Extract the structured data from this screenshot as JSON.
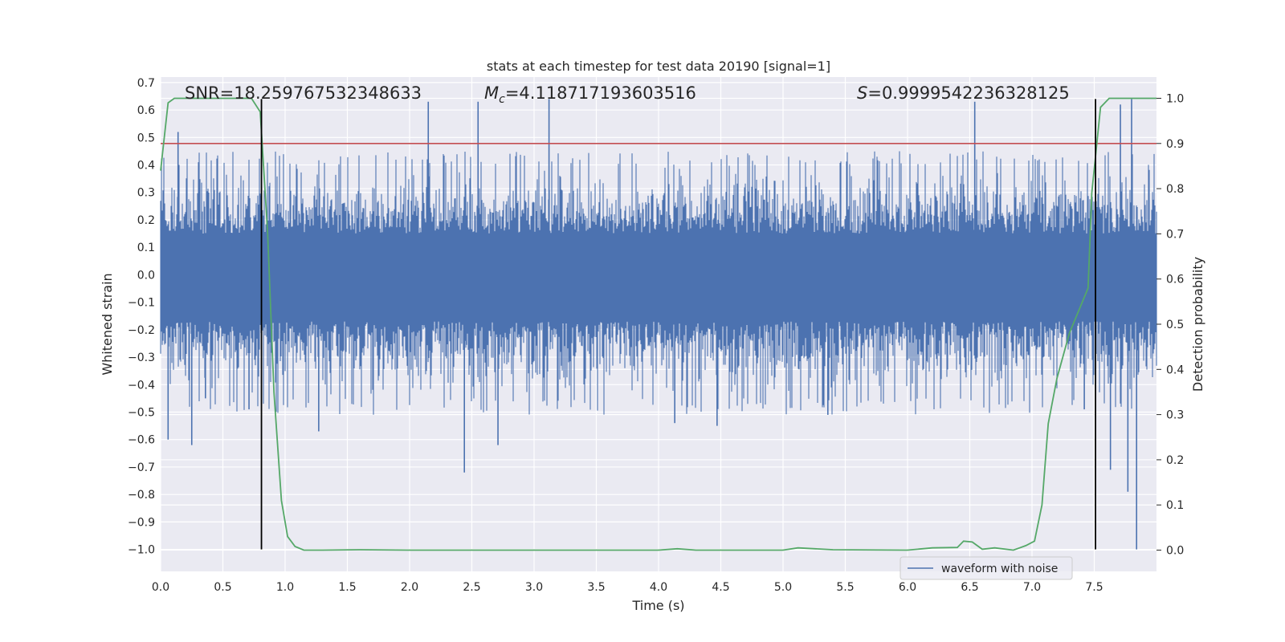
{
  "chart_data": {
    "type": "line",
    "title": "stats at each timestep for test data 20190 [signal=1]",
    "xlabel": "Time (s)",
    "ylabel": "Whitened strain",
    "ylabel_right": "Detection probability",
    "xlim": [
      0.0,
      8.0
    ],
    "ylim": [
      -1.08,
      0.72
    ],
    "ylim_right": [
      -0.047,
      1.047
    ],
    "grid": true,
    "x_ticks": [
      0.0,
      0.5,
      1.0,
      1.5,
      2.0,
      2.5,
      3.0,
      3.5,
      4.0,
      4.5,
      5.0,
      5.5,
      6.0,
      6.5,
      7.0,
      7.5
    ],
    "x_tick_labels": [
      "0.0",
      "0.5",
      "1.0",
      "1.5",
      "2.0",
      "2.5",
      "3.0",
      "3.5",
      "4.0",
      "4.5",
      "5.0",
      "5.5",
      "6.0",
      "6.5",
      "7.0",
      "7.5"
    ],
    "y_ticks": [
      0.7,
      0.6,
      0.5,
      0.4,
      0.3,
      0.2,
      0.1,
      0.0,
      -0.1,
      -0.2,
      -0.3,
      -0.4,
      -0.5,
      -0.6,
      -0.7,
      -0.8,
      -0.9,
      -1.0
    ],
    "y_tick_labels": [
      "0.7",
      "0.6",
      "0.5",
      "0.4",
      "0.3",
      "0.2",
      "0.1",
      "0.0",
      "−0.1",
      "−0.2",
      "−0.3",
      "−0.4",
      "−0.5",
      "−0.6",
      "−0.7",
      "−0.8",
      "−0.9",
      "−1.0"
    ],
    "y_ticks_right": [
      1.0,
      0.9,
      0.8,
      0.7,
      0.6,
      0.5,
      0.4,
      0.3,
      0.2,
      0.1,
      0.0
    ],
    "y_tick_labels_right": [
      "1.0",
      "0.9",
      "0.8",
      "0.7",
      "0.6",
      "0.5",
      "0.4",
      "0.3",
      "0.2",
      "0.1",
      "0.0"
    ],
    "annotations": {
      "snr": "SNR=18.259767532348633",
      "mc_symbol": "M",
      "mc_subscript": "c",
      "mc_value": "=4.118717193603516",
      "s_symbol": "S",
      "s_value": "=0.9999542236328125"
    },
    "legend": {
      "label": "waveform with noise",
      "location": "lower-right"
    },
    "colors": {
      "waveform": "#4c72b0",
      "probability": "#55a868",
      "threshold": "#c44e52",
      "markers": "#000000",
      "plot_bg": "#eaeaf2",
      "grid": "#ffffff"
    },
    "threshold": {
      "axis": "right",
      "value": 0.9
    },
    "vertical_markers": [
      {
        "x": 0.81,
        "y_from": -1.0,
        "y_to": 0.64
      },
      {
        "x": 7.51,
        "y_from": -1.0,
        "y_to": 0.64
      }
    ],
    "waveform": {
      "name": "waveform with noise",
      "x_range": [
        0.0,
        8.0
      ],
      "dense_band": [
        -0.17,
        0.15
      ],
      "typical_envelope": [
        -0.45,
        0.4
      ],
      "spikes": [
        {
          "x": 0.06,
          "y": -0.6
        },
        {
          "x": 0.14,
          "y": 0.52
        },
        {
          "x": 0.25,
          "y": -0.62
        },
        {
          "x": 0.36,
          "y": -0.45
        },
        {
          "x": 0.71,
          "y": -0.49
        },
        {
          "x": 1.27,
          "y": -0.57
        },
        {
          "x": 2.15,
          "y": 0.63
        },
        {
          "x": 2.44,
          "y": -0.72
        },
        {
          "x": 2.55,
          "y": 0.63
        },
        {
          "x": 2.71,
          "y": -0.62
        },
        {
          "x": 3.12,
          "y": 0.64
        },
        {
          "x": 4.13,
          "y": -0.54
        },
        {
          "x": 4.47,
          "y": -0.55
        },
        {
          "x": 5.36,
          "y": -0.51
        },
        {
          "x": 6.54,
          "y": 0.63
        },
        {
          "x": 7.42,
          "y": -0.49
        },
        {
          "x": 7.63,
          "y": -0.71
        },
        {
          "x": 7.71,
          "y": 0.62
        },
        {
          "x": 7.77,
          "y": -0.79
        },
        {
          "x": 7.8,
          "y": 0.64
        },
        {
          "x": 7.84,
          "y": -1.0
        }
      ]
    },
    "probability_series": {
      "name": "detection probability",
      "axis": "right",
      "x": [
        0.0,
        0.06,
        0.11,
        0.2,
        0.4,
        0.6,
        0.73,
        0.8,
        0.86,
        0.91,
        0.97,
        1.02,
        1.08,
        1.15,
        1.3,
        1.6,
        2.0,
        3.0,
        4.0,
        4.15,
        4.3,
        5.0,
        5.12,
        5.4,
        6.0,
        6.2,
        6.4,
        6.45,
        6.52,
        6.6,
        6.7,
        6.85,
        6.95,
        7.02,
        7.08,
        7.13,
        7.2,
        7.3,
        7.45,
        7.48,
        7.55,
        7.62,
        8.0
      ],
      "y": [
        0.84,
        0.99,
        1.0,
        1.0,
        1.0,
        1.0,
        1.0,
        0.97,
        0.7,
        0.35,
        0.11,
        0.03,
        0.008,
        0.0,
        0.0,
        0.001,
        0.0,
        0.0,
        0.0,
        0.003,
        0.0,
        0.0,
        0.005,
        0.001,
        0.0,
        0.005,
        0.006,
        0.02,
        0.018,
        0.002,
        0.005,
        0.0,
        0.01,
        0.02,
        0.1,
        0.28,
        0.38,
        0.48,
        0.58,
        0.79,
        0.98,
        1.0,
        1.0
      ]
    }
  }
}
